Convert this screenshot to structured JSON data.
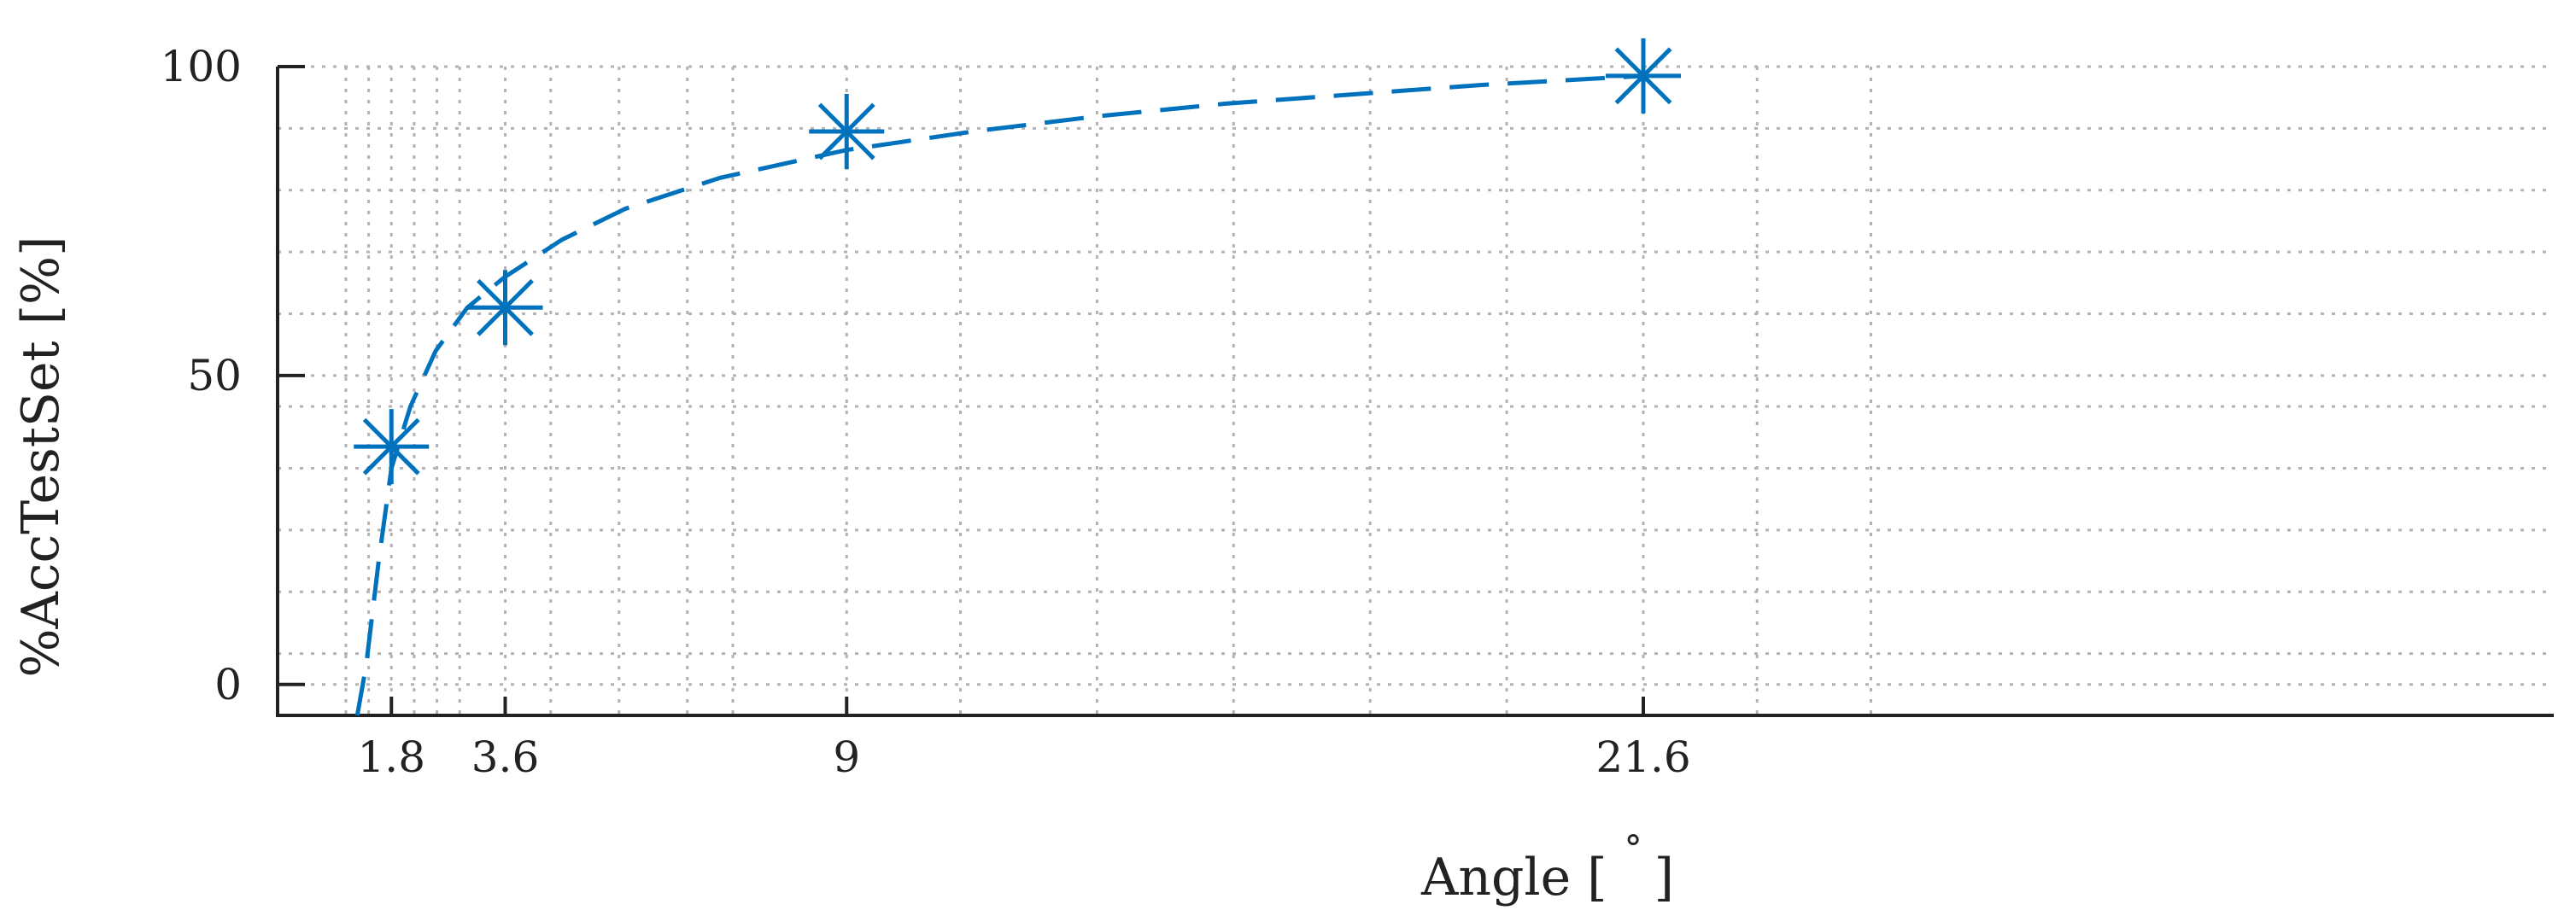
{
  "chart_data": {
    "type": "scatter",
    "title": "",
    "xlabel": "Angle [",
    "xlabel_unit": "°",
    "xlabel_close": "]",
    "ylabel": "%AccTestSet [%]",
    "xlim": [
      0,
      36
    ],
    "ylim": [
      -5,
      100
    ],
    "x_tick_values": [
      1.8,
      3.6,
      9,
      21.6
    ],
    "x_tick_labels": [
      "1.8",
      "3.6",
      "9",
      "21.6"
    ],
    "x_minor_grid": [
      1.08,
      1.44,
      2.16,
      2.52,
      2.88,
      4.32,
      5.4,
      6.48,
      7.2,
      10.8,
      12.96,
      15.12,
      17.28,
      19.44,
      23.4,
      25.2
    ],
    "y_tick_values": [
      0,
      50,
      100
    ],
    "y_tick_labels": [
      "0",
      "50",
      "100"
    ],
    "y_minor_grid": [
      5,
      15,
      25,
      35,
      45,
      60,
      70,
      80,
      90
    ],
    "grid": true,
    "series": [
      {
        "kind": "points",
        "marker": "asterisk",
        "x": [
          1.8,
          3.6,
          9,
          21.6
        ],
        "y": [
          38.5,
          61,
          89.5,
          98.5
        ]
      },
      {
        "kind": "fit",
        "line_style": "dashed",
        "x": [
          1.26,
          1.4,
          1.6,
          1.8,
          2.1,
          2.5,
          3,
          3.6,
          4.5,
          5.5,
          7,
          9,
          11,
          13,
          15,
          17,
          19,
          21.6
        ],
        "y": [
          -5,
          3,
          20,
          35,
          45,
          54,
          61,
          66,
          72,
          77,
          82,
          86.5,
          89.5,
          92,
          94,
          95.5,
          97,
          98.5
        ]
      }
    ],
    "colors": {
      "series": "#0072BD",
      "axis": "#222222",
      "grid": "#b3b3b3"
    }
  }
}
